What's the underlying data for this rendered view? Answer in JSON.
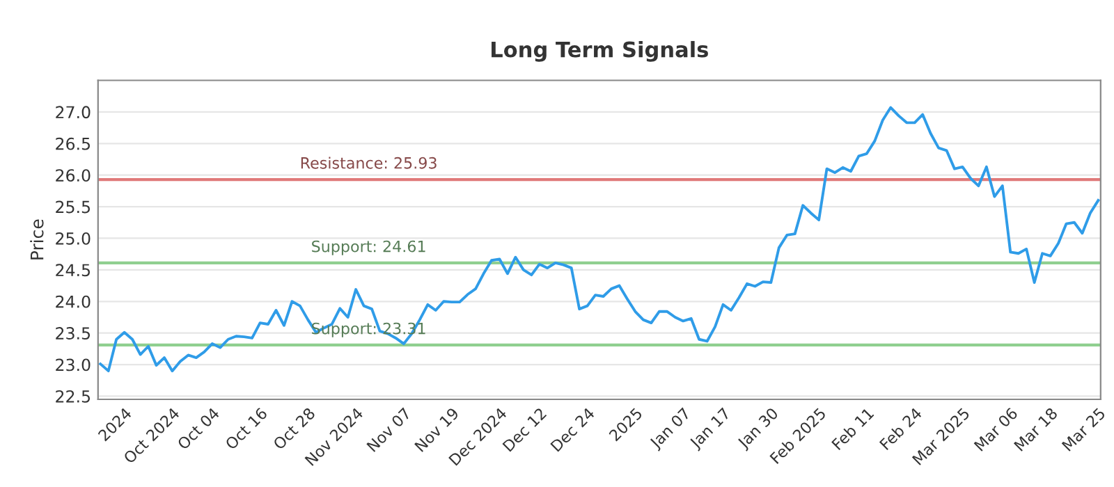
{
  "chart_data": {
    "type": "line",
    "title": "Long Term Signals",
    "ylabel": "Price",
    "categories": [
      null,
      null,
      null,
      "2024",
      null,
      null,
      null,
      null,
      null,
      "Oct 2024",
      null,
      null,
      null,
      null,
      "Oct 04",
      null,
      null,
      null,
      null,
      null,
      "Oct 16",
      null,
      null,
      null,
      null,
      null,
      "Oct 28",
      null,
      null,
      null,
      null,
      null,
      "Nov 2024",
      null,
      null,
      null,
      null,
      null,
      "Nov 07",
      null,
      null,
      null,
      null,
      null,
      "Nov 19",
      null,
      null,
      null,
      null,
      null,
      "Dec 2024",
      null,
      null,
      null,
      null,
      "Dec 12",
      null,
      null,
      null,
      null,
      null,
      "Dec 24",
      null,
      null,
      null,
      null,
      null,
      "2025",
      null,
      null,
      null,
      null,
      null,
      "Jan 07",
      null,
      null,
      null,
      null,
      "Jan 17",
      null,
      null,
      null,
      null,
      null,
      "Jan 30",
      null,
      null,
      null,
      null,
      null,
      "Feb 2025",
      null,
      null,
      null,
      null,
      null,
      "Feb 11",
      null,
      null,
      null,
      null,
      null,
      "Feb 24",
      null,
      null,
      null,
      null,
      null,
      "Mar 2025",
      null,
      null,
      null,
      null,
      null,
      "Mar 06",
      null,
      null,
      null,
      null,
      "Mar 18",
      null,
      null,
      null,
      null,
      null,
      "Mar 25"
    ],
    "series": [
      {
        "color": "#2f9ce8",
        "values": [
          23.01,
          22.9,
          23.4,
          23.51,
          23.4,
          23.16,
          23.29,
          22.99,
          23.11,
          22.9,
          23.05,
          23.15,
          23.11,
          23.2,
          23.33,
          23.27,
          23.4,
          23.45,
          23.44,
          23.42,
          23.66,
          23.64,
          23.86,
          23.62,
          24.0,
          23.93,
          23.71,
          23.51,
          23.58,
          23.64,
          23.89,
          23.75,
          24.19,
          23.93,
          23.88,
          23.53,
          23.49,
          23.42,
          23.33,
          23.49,
          23.71,
          23.95,
          23.86,
          24.0,
          23.99,
          23.99,
          24.11,
          24.2,
          24.44,
          24.65,
          24.67,
          24.44,
          24.7,
          24.5,
          24.42,
          24.59,
          24.53,
          24.61,
          24.58,
          24.53,
          23.88,
          23.93,
          24.1,
          24.08,
          24.2,
          24.25,
          24.04,
          23.84,
          23.71,
          23.66,
          23.84,
          23.84,
          23.75,
          23.69,
          23.73,
          23.4,
          23.37,
          23.6,
          23.95,
          23.86,
          24.06,
          24.28,
          24.24,
          24.31,
          24.3,
          24.85,
          25.05,
          25.07,
          25.52,
          25.4,
          25.29,
          26.1,
          26.04,
          26.12,
          26.06,
          26.3,
          26.34,
          26.54,
          26.87,
          27.07,
          26.94,
          26.83,
          26.83,
          26.96,
          26.66,
          26.43,
          26.39,
          26.1,
          26.13,
          25.95,
          25.83,
          26.13,
          25.66,
          25.83,
          24.78,
          24.76,
          24.83,
          24.3,
          24.76,
          24.72,
          24.92,
          25.23,
          25.25,
          25.08,
          25.4,
          25.6
        ]
      }
    ],
    "ylim": [
      22.45,
      27.5
    ],
    "yticks": [
      {
        "value": 22.5,
        "label": "22.5"
      },
      {
        "value": 23,
        "label": "23.0"
      },
      {
        "value": 23.5,
        "label": "23.5"
      },
      {
        "value": 24,
        "label": "24.0"
      },
      {
        "value": 24.5,
        "label": "24.5"
      },
      {
        "value": 25,
        "label": "25.0"
      },
      {
        "value": 25.5,
        "label": "25.5"
      },
      {
        "value": 26,
        "label": "26.0"
      },
      {
        "value": 26.5,
        "label": "26.5"
      },
      {
        "value": 27,
        "label": "27.0"
      }
    ],
    "grid": "y",
    "ref_lines": [
      {
        "axis": "y",
        "value": 25.93,
        "label": "Resistance: 25.93",
        "color": "#e07a7a"
      },
      {
        "axis": "y",
        "value": 24.61,
        "label": "Support: 24.61",
        "color": "#8fcf8f"
      },
      {
        "axis": "y",
        "value": 23.31,
        "label": "Support: 23.31",
        "color": "#8fcf8f"
      }
    ]
  }
}
